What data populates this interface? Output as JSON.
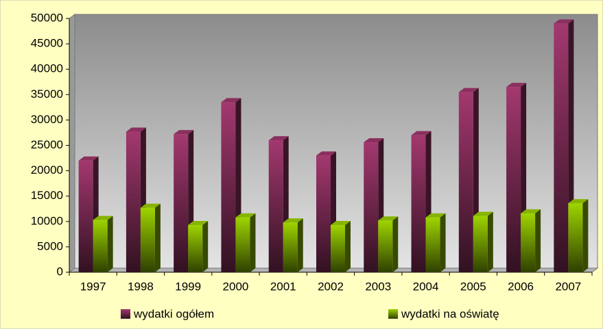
{
  "chart_data": {
    "type": "bar3d",
    "categories": [
      "1997",
      "1998",
      "1999",
      "2000",
      "2001",
      "2002",
      "2003",
      "2004",
      "2005",
      "2006",
      "2007"
    ],
    "series": [
      {
        "name": "wydatki ogółem",
        "color": "#a3386f",
        "values": [
          22000,
          27700,
          27200,
          33500,
          26000,
          23000,
          25600,
          27000,
          35500,
          36500,
          49000
        ]
      },
      {
        "name": "wydatki na oświatę",
        "color": "#9ed400",
        "values": [
          10300,
          12700,
          9300,
          10800,
          9800,
          9300,
          10200,
          10800,
          11100,
          11600,
          13600
        ]
      }
    ],
    "ylim": [
      0,
      50000
    ],
    "yticks": [
      0,
      5000,
      10000,
      15000,
      20000,
      25000,
      30000,
      35000,
      40000,
      45000,
      50000
    ],
    "legend": "bottom"
  }
}
